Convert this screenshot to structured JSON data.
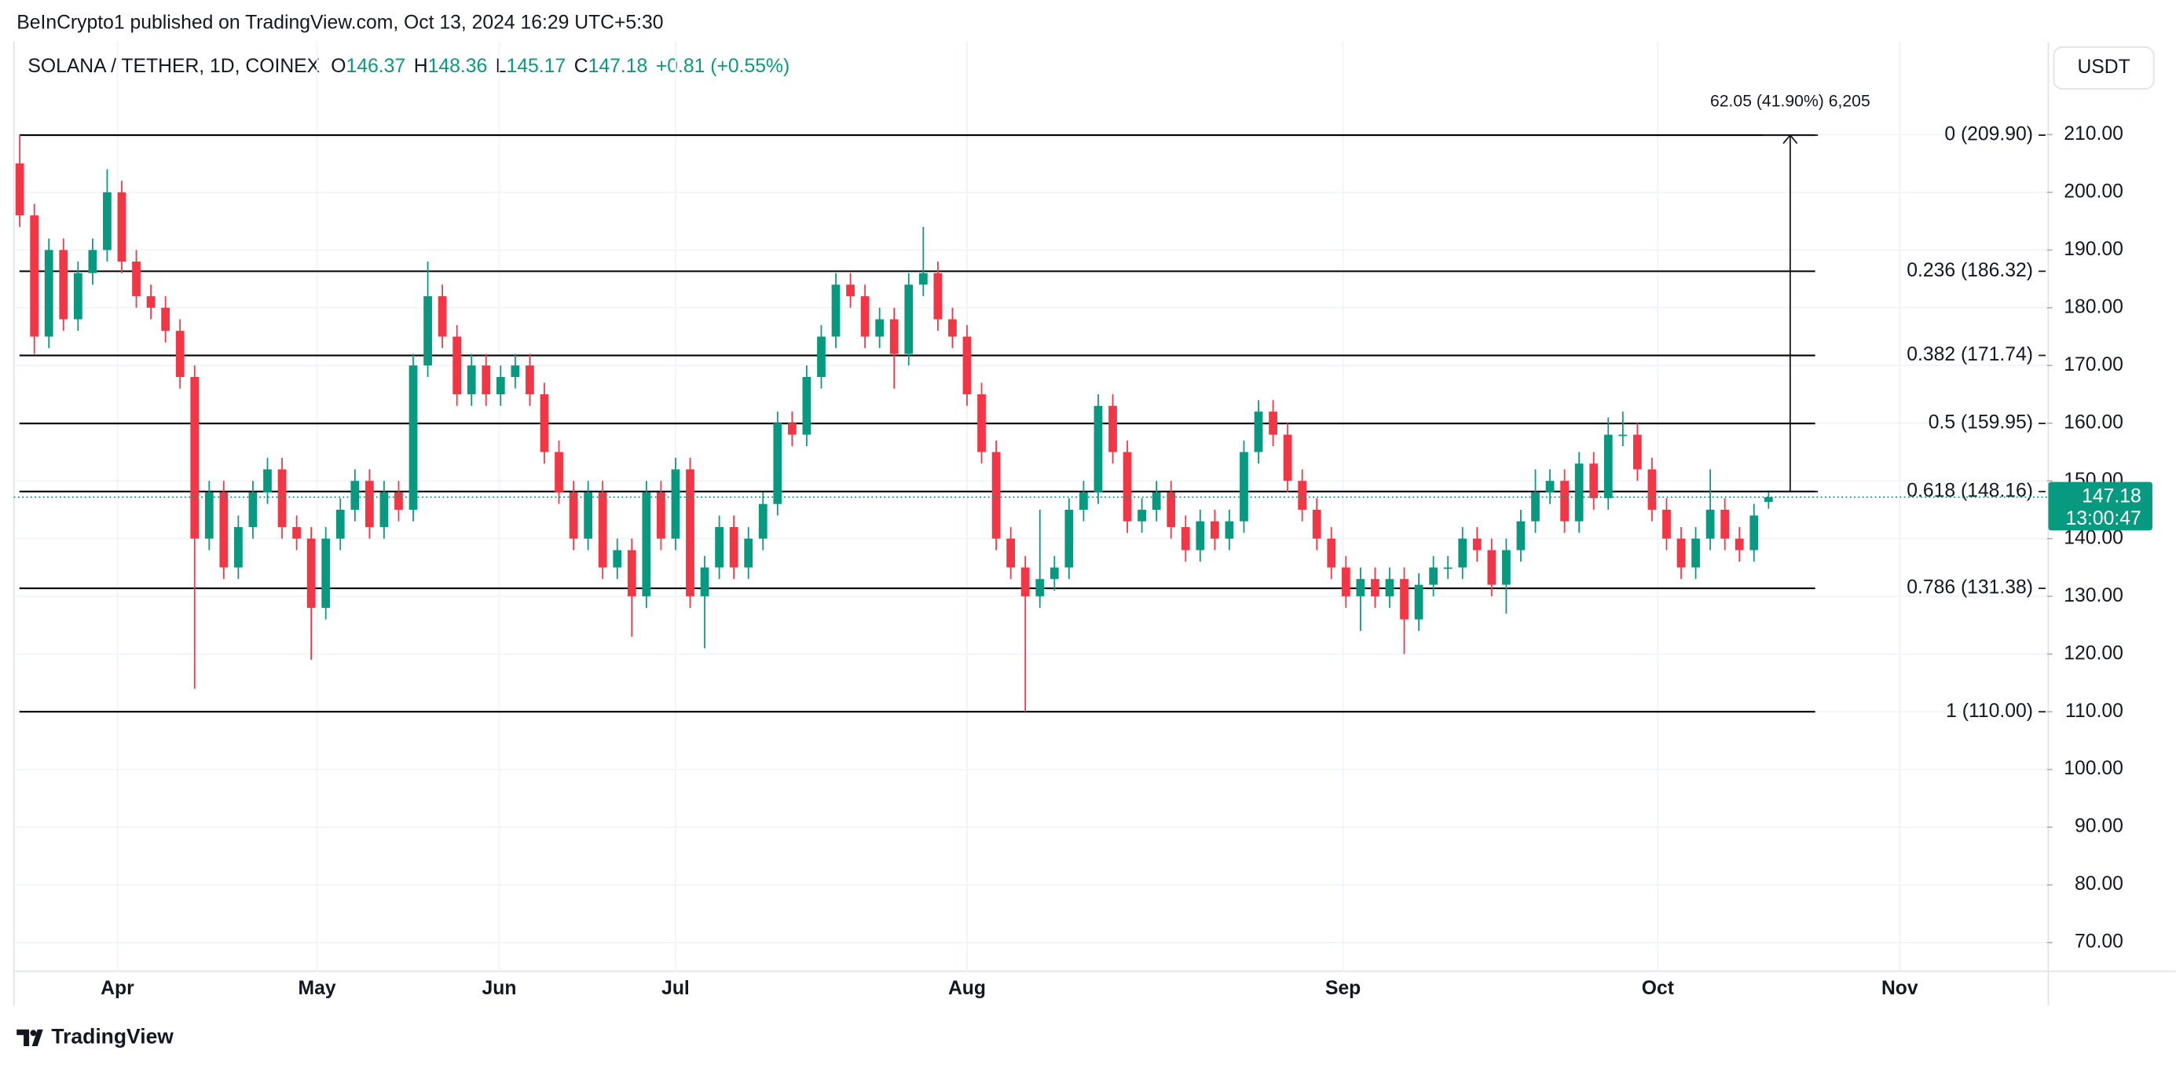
{
  "header": {
    "published": "BeInCrypto1 published on TradingView.com, Oct 13, 2024 16:29 UTC+5:30",
    "currency_button": "USDT",
    "logo": "TradingView"
  },
  "chart_data": {
    "type": "candlestick",
    "title": "SOLANA / TETHER, 1D, COINEX",
    "ohlc_keys": [
      "O",
      "H",
      "L",
      "C"
    ],
    "change": "+0.81 (+0.55%)",
    "open": [
      205,
      196,
      175,
      190,
      178,
      186,
      190,
      200,
      188,
      182,
      180,
      176,
      168,
      140,
      148,
      135,
      142,
      148,
      152,
      142,
      140,
      128,
      140,
      145,
      150,
      142,
      148,
      145,
      170,
      182,
      175,
      165,
      170,
      165,
      168,
      170,
      165,
      155,
      148,
      140,
      148,
      135,
      138,
      130,
      148,
      140,
      152,
      130,
      135,
      142,
      135,
      140,
      146,
      160,
      158,
      168,
      175,
      184,
      182,
      175,
      178,
      172,
      184,
      186,
      178,
      175,
      165,
      155,
      140,
      135,
      130,
      133,
      135,
      145,
      148,
      163,
      155,
      143,
      145,
      148,
      142,
      138,
      143,
      140,
      143,
      155,
      162,
      158,
      150,
      145,
      140,
      135,
      130,
      133,
      130,
      133,
      126,
      132,
      135,
      135,
      140,
      138,
      132,
      138,
      143,
      148,
      150,
      143,
      153,
      147,
      158,
      158,
      152,
      145,
      140,
      135,
      140,
      145,
      140,
      138,
      146.37
    ],
    "high": [
      209.9,
      198,
      192,
      192,
      188,
      192,
      204,
      202,
      190,
      184,
      182,
      178,
      170,
      150,
      150,
      144,
      150,
      154,
      154,
      144,
      142,
      142,
      147,
      152,
      152,
      150,
      150,
      172,
      188,
      184,
      177,
      172,
      172,
      170,
      172,
      172,
      167,
      157,
      150,
      150,
      150,
      140,
      140,
      150,
      150,
      154,
      154,
      137,
      144,
      144,
      142,
      148,
      162,
      162,
      170,
      177,
      186,
      186,
      184,
      180,
      180,
      186,
      194,
      188,
      180,
      177,
      167,
      157,
      142,
      137,
      145,
      137,
      147,
      150,
      165,
      165,
      157,
      147,
      150,
      150,
      144,
      145,
      145,
      145,
      157,
      164,
      164,
      160,
      152,
      147,
      142,
      137,
      135,
      135,
      135,
      135,
      134,
      137,
      137,
      142,
      142,
      140,
      140,
      145,
      152,
      152,
      152,
      155,
      155,
      161,
      162,
      160,
      154,
      147,
      142,
      142,
      152,
      147,
      142,
      146,
      148.36
    ],
    "low": [
      194,
      172,
      173,
      176,
      176,
      184,
      188,
      186,
      180,
      178,
      174,
      166,
      114,
      138,
      133,
      133,
      140,
      146,
      140,
      138,
      119,
      126,
      138,
      143,
      140,
      140,
      143,
      143,
      168,
      173,
      163,
      163,
      163,
      163,
      166,
      163,
      153,
      146,
      138,
      138,
      133,
      133,
      123,
      128,
      138,
      138,
      128,
      121,
      133,
      133,
      133,
      138,
      144,
      156,
      156,
      166,
      173,
      180,
      173,
      173,
      166,
      170,
      182,
      176,
      173,
      163,
      153,
      138,
      133,
      110,
      128,
      131,
      133,
      143,
      146,
      153,
      141,
      141,
      143,
      140,
      136,
      136,
      138,
      138,
      141,
      153,
      156,
      148,
      143,
      138,
      133,
      128,
      124,
      128,
      128,
      120,
      124,
      130,
      133,
      133,
      136,
      130,
      127,
      136,
      141,
      146,
      141,
      141,
      145,
      145,
      156,
      150,
      143,
      138,
      133,
      133,
      138,
      138,
      136,
      136,
      145.17
    ],
    "close": [
      196,
      175,
      190,
      178,
      186,
      190,
      200,
      188,
      182,
      180,
      176,
      168,
      140,
      148,
      135,
      142,
      148,
      152,
      142,
      140,
      128,
      140,
      145,
      150,
      142,
      148,
      145,
      170,
      182,
      175,
      165,
      170,
      165,
      168,
      170,
      165,
      155,
      148,
      140,
      148,
      135,
      138,
      130,
      148,
      140,
      152,
      130,
      135,
      142,
      135,
      140,
      146,
      160,
      158,
      168,
      175,
      184,
      182,
      175,
      178,
      172,
      184,
      186,
      178,
      175,
      165,
      155,
      140,
      135,
      130,
      133,
      135,
      145,
      148,
      163,
      155,
      143,
      145,
      148,
      142,
      138,
      143,
      140,
      143,
      155,
      162,
      158,
      150,
      145,
      140,
      135,
      130,
      133,
      130,
      133,
      126,
      132,
      135,
      135,
      140,
      138,
      132,
      138,
      143,
      148,
      150,
      143,
      153,
      147,
      158,
      158,
      152,
      145,
      140,
      135,
      140,
      145,
      140,
      138,
      144,
      147.18
    ],
    "up_color": "#089981",
    "down_color": "#f23645",
    "xlim": [
      -0.4,
      139.1
    ],
    "xticks": [
      {
        "value": 6.7,
        "label": "Apr"
      },
      {
        "value": 20.4,
        "label": "May"
      },
      {
        "value": 32.9,
        "label": "Jun"
      },
      {
        "value": 45,
        "label": "Jul"
      },
      {
        "value": 65,
        "label": "Aug"
      },
      {
        "value": 90.8,
        "label": "Sep"
      },
      {
        "value": 112.4,
        "label": "Oct"
      },
      {
        "value": 129,
        "label": "Nov"
      }
    ],
    "ylim": [
      65,
      225
    ],
    "yticks": [
      {
        "value": 70,
        "label": "70.00"
      },
      {
        "value": 80,
        "label": "80.00"
      },
      {
        "value": 90,
        "label": "90.00"
      },
      {
        "value": 100,
        "label": "100.00"
      },
      {
        "value": 110,
        "label": "110.00"
      },
      {
        "value": 120,
        "label": "120.00"
      },
      {
        "value": 130,
        "label": "130.00"
      },
      {
        "value": 140,
        "label": "140.00"
      },
      {
        "value": 150,
        "label": "150.00"
      },
      {
        "value": 160,
        "label": "160.00"
      },
      {
        "value": 170,
        "label": "170.00"
      },
      {
        "value": 180,
        "label": "180.00"
      },
      {
        "value": 190,
        "label": "190.00"
      },
      {
        "value": 200,
        "label": "200.00"
      },
      {
        "value": 210,
        "label": "210.00"
      }
    ],
    "grid": true,
    "fib_levels": [
      {
        "value": 209.9,
        "label": "0 (209.90)"
      },
      {
        "value": 186.32,
        "label": "0.236 (186.32)"
      },
      {
        "value": 171.74,
        "label": "0.382 (171.74)"
      },
      {
        "value": 159.95,
        "label": "0.5 (159.95)"
      },
      {
        "value": 148.16,
        "label": "0.618 (148.16)"
      },
      {
        "value": 131.38,
        "label": "0.786 (131.38)"
      },
      {
        "value": 110,
        "label": "1 (110.00)"
      }
    ],
    "measure_label": "62.05 (41.90%) 6,205",
    "countdown": "13:00:47"
  }
}
